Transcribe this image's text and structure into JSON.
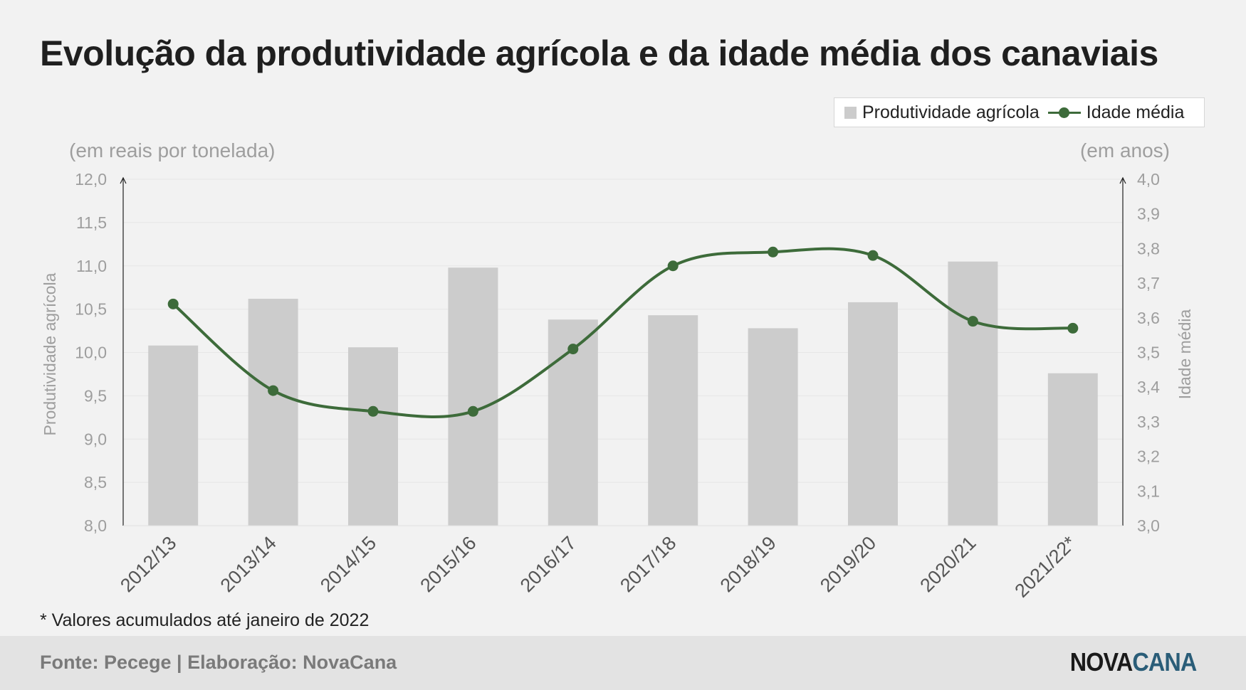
{
  "title": "Evolução da produtividade agrícola e da idade média dos canaviais",
  "footnote": "* Valores acumulados até janeiro de 2022",
  "footer": {
    "source": "Fonte: Pecege | Elaboração: NovaCana",
    "logo_part1": "NOVA",
    "logo_part2": "CANA"
  },
  "colors": {
    "bar": "#cccccc",
    "line": "#3d6b3a",
    "axis_text": "#9e9e9e",
    "logo_dark": "#1a1a1a",
    "logo_blue": "#2a5d78"
  },
  "chart_data": {
    "type": "bar",
    "categories": [
      "2012/13",
      "2013/14",
      "2014/15",
      "2015/16",
      "2016/17",
      "2017/18",
      "2018/19",
      "2019/20",
      "2020/21",
      "2021/22*"
    ],
    "series": [
      {
        "name": "Produtividade agrícola",
        "type": "bar",
        "axis": "left",
        "values": [
          10.08,
          10.62,
          10.06,
          10.98,
          10.38,
          10.43,
          10.28,
          10.58,
          11.05,
          9.76
        ]
      },
      {
        "name": "Idade média",
        "type": "line",
        "axis": "right",
        "values": [
          3.64,
          3.39,
          3.33,
          3.33,
          3.51,
          3.75,
          3.79,
          3.78,
          3.59,
          3.57
        ]
      }
    ],
    "left_unit_label": "(em reais por tonelada)",
    "right_unit_label": "(em anos)",
    "ylabel_left": "Produtividade agrícola",
    "ylabel_right": "Idade média",
    "ylim_left": [
      8.0,
      12.0
    ],
    "ylim_right": [
      3.0,
      4.0
    ],
    "left_ticks": [
      "8,0",
      "8,5",
      "9,0",
      "9,5",
      "10,0",
      "10,5",
      "11,0",
      "11,5",
      "12,0"
    ],
    "right_ticks": [
      "3,0",
      "3,1",
      "3,2",
      "3,3",
      "3,4",
      "3,5",
      "3,6",
      "3,7",
      "3,8",
      "3,9",
      "4,0"
    ],
    "legend_position": "top-right",
    "grid": true
  }
}
